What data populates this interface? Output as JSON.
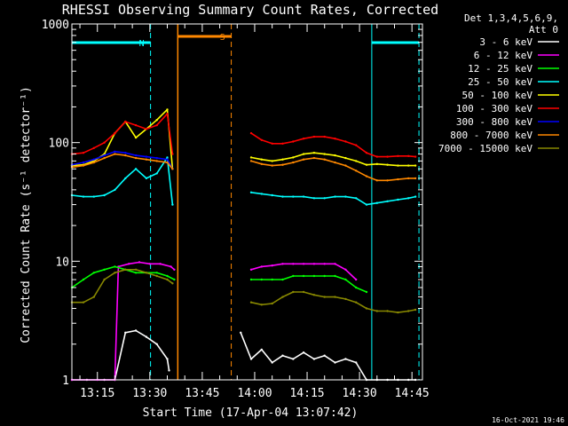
{
  "chart_data": {
    "type": "line",
    "title": "RHESSI Observing Summary Count Rates, Corrected",
    "xlabel": "Start Time (17-Apr-04 13:07:42)",
    "ylabel": "Corrected Count Rate (s⁻¹ detector⁻¹)",
    "x_units": "minutes of day (UT)",
    "xlim": [
      787.7,
      888
    ],
    "yscale": "log",
    "ylim": [
      1,
      1000
    ],
    "x_ticks": [
      {
        "value": 795,
        "label": "13:15"
      },
      {
        "value": 810,
        "label": "13:30"
      },
      {
        "value": 825,
        "label": "13:45"
      },
      {
        "value": 840,
        "label": "14:00"
      },
      {
        "value": 855,
        "label": "14:15"
      },
      {
        "value": 870,
        "label": "14:30"
      },
      {
        "value": 885,
        "label": "14:45"
      }
    ],
    "y_ticks": [
      {
        "value": 1,
        "label": "1"
      },
      {
        "value": 10,
        "label": "10"
      },
      {
        "value": 100,
        "label": "100"
      },
      {
        "value": 1000,
        "label": "1000"
      }
    ],
    "legend_header": [
      "Det 1,3,4,5,6,9,",
      "Att 0"
    ],
    "legend_position": "right",
    "series": [
      {
        "name": "3 - 6 keV",
        "color": "#ffffff",
        "x": [
          787.7,
          792,
          797,
          800,
          803,
          806,
          809,
          812,
          815,
          815.5,
          818,
          821,
          824,
          827,
          830,
          833,
          836,
          839,
          842,
          845,
          848,
          851,
          854,
          857,
          860,
          863,
          866,
          869,
          872,
          875,
          878,
          881,
          884,
          886
        ],
        "values": [
          1,
          1,
          1,
          1,
          2.5,
          2.6,
          2.3,
          2,
          1.5,
          1.2,
          null,
          null,
          null,
          null,
          null,
          null,
          2.5,
          1.5,
          1.8,
          1.4,
          1.6,
          1.5,
          1.7,
          1.5,
          1.6,
          1.4,
          1.5,
          1.4,
          1,
          1,
          1,
          1,
          1,
          1
        ]
      },
      {
        "name": "6 - 12 keV",
        "color": "#ff00ff",
        "x": [
          787.7,
          795,
          800,
          801,
          804,
          807,
          810,
          813,
          816,
          817,
          836,
          839,
          842,
          845,
          848,
          851,
          854,
          857,
          860,
          863,
          866,
          869,
          872
        ],
        "values": [
          1,
          1,
          1,
          9,
          9.5,
          9.8,
          9.5,
          9.5,
          9,
          8.5,
          null,
          8.5,
          9,
          9.2,
          9.5,
          9.5,
          9.5,
          9.5,
          9.5,
          9.5,
          8.5,
          7,
          null
        ]
      },
      {
        "name": "12 - 25 keV",
        "color": "#00ff00",
        "x": [
          787.7,
          791,
          794,
          797,
          800,
          803,
          806,
          809,
          812,
          815,
          817,
          836,
          839,
          842,
          845,
          848,
          851,
          854,
          857,
          860,
          863,
          866,
          869,
          872
        ],
        "values": [
          6,
          7,
          8,
          8.5,
          9,
          8.5,
          8,
          8,
          8,
          7.5,
          7,
          null,
          7,
          7,
          7,
          7,
          7.5,
          7.5,
          7.5,
          7.5,
          7.5,
          7,
          6,
          5.5
        ]
      },
      {
        "name": "25 - 50 keV",
        "color": "#00ffff",
        "x": [
          787.7,
          791,
          794,
          797,
          800,
          803,
          806,
          809,
          812,
          815,
          816.5,
          836,
          839,
          842,
          845,
          848,
          851,
          854,
          857,
          860,
          863,
          866,
          869,
          872,
          875,
          878,
          881,
          884,
          886
        ],
        "values": [
          36,
          35,
          35,
          36,
          40,
          50,
          60,
          50,
          55,
          75,
          30,
          null,
          38,
          37,
          36,
          35,
          35,
          35,
          34,
          34,
          35,
          35,
          34,
          30,
          31,
          32,
          33,
          34,
          35
        ]
      },
      {
        "name": "50 - 100 keV",
        "color": "#ffff00",
        "x": [
          787.7,
          791,
          794,
          797,
          800,
          803,
          806,
          809,
          812,
          815,
          816.5,
          836,
          839,
          842,
          845,
          848,
          851,
          854,
          857,
          860,
          863,
          866,
          869,
          872,
          875,
          878,
          881,
          884,
          886
        ],
        "values": [
          64,
          65,
          70,
          80,
          120,
          150,
          110,
          130,
          155,
          190,
          60,
          null,
          75,
          72,
          70,
          72,
          75,
          80,
          82,
          80,
          78,
          74,
          70,
          65,
          66,
          65,
          64,
          64,
          64
        ]
      },
      {
        "name": "100 - 300 keV",
        "color": "#ff0000",
        "x": [
          787.7,
          791,
          794,
          797,
          800,
          803,
          806,
          809,
          812,
          815,
          816.5,
          836,
          839,
          842,
          845,
          848,
          851,
          854,
          857,
          860,
          863,
          866,
          869,
          872,
          875,
          878,
          881,
          884,
          886
        ],
        "values": [
          80,
          82,
          90,
          100,
          120,
          150,
          140,
          130,
          140,
          175,
          80,
          null,
          120,
          105,
          98,
          98,
          102,
          108,
          112,
          112,
          108,
          102,
          95,
          82,
          76,
          76,
          77,
          77,
          76
        ]
      },
      {
        "name": "300 - 800 keV",
        "color": "#0000ff",
        "x": [
          787.7,
          791,
          794,
          797,
          800,
          803,
          806,
          809,
          812,
          815,
          816.5
        ],
        "values": [
          65,
          68,
          72,
          78,
          84,
          82,
          78,
          76,
          74,
          72,
          60
        ]
      },
      {
        "name": "800 - 7000 keV",
        "color": "#ff8800",
        "x": [
          787.7,
          791,
          794,
          797,
          800,
          803,
          806,
          809,
          812,
          815,
          816.5,
          836,
          839,
          842,
          845,
          848,
          851,
          854,
          857,
          860,
          863,
          866,
          869,
          872,
          875,
          878,
          881,
          884,
          886
        ],
        "values": [
          62,
          64,
          68,
          74,
          80,
          78,
          74,
          72,
          70,
          68,
          60,
          null,
          70,
          66,
          64,
          65,
          68,
          72,
          74,
          72,
          68,
          64,
          58,
          52,
          48,
          48,
          49,
          50,
          50
        ]
      },
      {
        "name": "7000 - 15000 keV",
        "color": "#888800",
        "x": [
          787.7,
          791,
          794,
          797,
          800,
          803,
          806,
          809,
          812,
          815,
          816.5,
          836,
          839,
          842,
          845,
          848,
          851,
          854,
          857,
          860,
          863,
          866,
          869,
          872,
          875,
          878,
          881,
          884,
          886
        ],
        "values": [
          4.5,
          4.5,
          5,
          7,
          8,
          8.5,
          8.5,
          8,
          7.5,
          7,
          6.5,
          null,
          4.5,
          4.3,
          4.4,
          5,
          5.5,
          5.5,
          5.2,
          5,
          5,
          4.8,
          4.5,
          4,
          3.8,
          3.8,
          3.7,
          3.8,
          3.9
        ]
      }
    ],
    "annotations": [
      {
        "label": "N",
        "color": "#00ffff",
        "x_start": 787.7,
        "x_end": 810.2
      },
      {
        "label": "",
        "color": "#00ffff",
        "x_start": 873.5,
        "x_end": 887
      },
      {
        "label": "S",
        "color": "#ff8800",
        "x_start": 818,
        "x_end": 833.3
      }
    ],
    "footer": "16-Oct-2021 19:46"
  }
}
